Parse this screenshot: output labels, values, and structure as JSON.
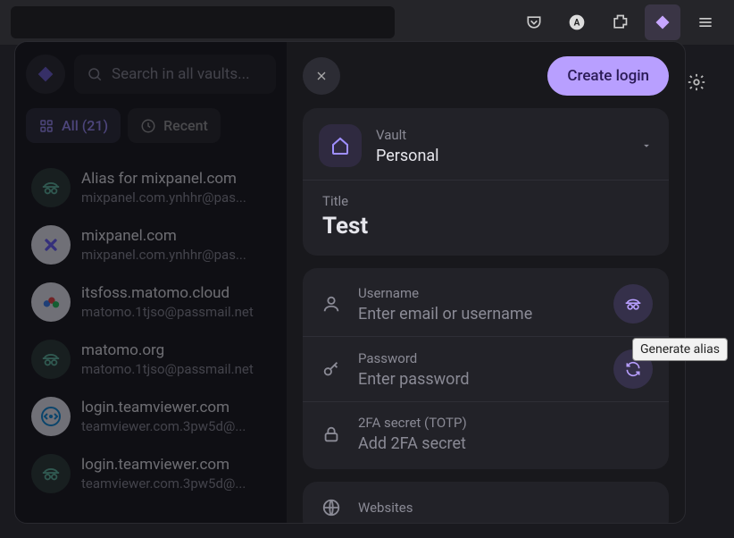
{
  "browser": {
    "pocket": "pocket-icon",
    "account": "account-icon",
    "extension": "extension-icon",
    "menu": "menu-icon"
  },
  "sidebar": {
    "search_placeholder": "Search in all vaults...",
    "filters": {
      "all": "All (21)",
      "recent": "Recent"
    },
    "items": [
      {
        "title": "Alias for mixpanel.com",
        "sub": "mixpanel.com.ynhhr@pas...",
        "avatar_bg": "#2a3a36",
        "avatar_fg": "#5fb89f",
        "kind": "alias"
      },
      {
        "title": "mixpanel.com",
        "sub": "mixpanel.com.ynhhr@pas...",
        "avatar_bg": "#eeeef6",
        "avatar_fg": "#6b5fff",
        "kind": "logo-x"
      },
      {
        "title": "itsfoss.matomo.cloud",
        "sub": "matomo.1tjso@passmail.net",
        "avatar_bg": "#eeeef6",
        "avatar_fg": "#3b82f6",
        "kind": "logo-m"
      },
      {
        "title": "matomo.org",
        "sub": "matomo.1tjso@passmail.net",
        "avatar_bg": "#2a3a36",
        "avatar_fg": "#5fb89f",
        "kind": "alias"
      },
      {
        "title": "login.teamviewer.com",
        "sub": "teamviewer.com.3pw5d@...",
        "avatar_bg": "#eeeef6",
        "avatar_fg": "#0d8ddb",
        "kind": "logo-tv"
      },
      {
        "title": "login.teamviewer.com",
        "sub": "teamviewer.com.3pw5d@...",
        "avatar_bg": "#2a3a36",
        "avatar_fg": "#5fb89f",
        "kind": "alias"
      }
    ]
  },
  "panel": {
    "create_label": "Create login",
    "vault": {
      "label": "Vault",
      "value": "Personal"
    },
    "title": {
      "label": "Title",
      "value": "Test"
    },
    "username": {
      "label": "Username",
      "placeholder": "Enter email or username"
    },
    "password": {
      "label": "Password",
      "placeholder": "Enter password"
    },
    "totp": {
      "label": "2FA secret (TOTP)",
      "placeholder": "Add 2FA secret"
    },
    "websites": {
      "label": "Websites"
    }
  },
  "tooltip": "Generate alias"
}
